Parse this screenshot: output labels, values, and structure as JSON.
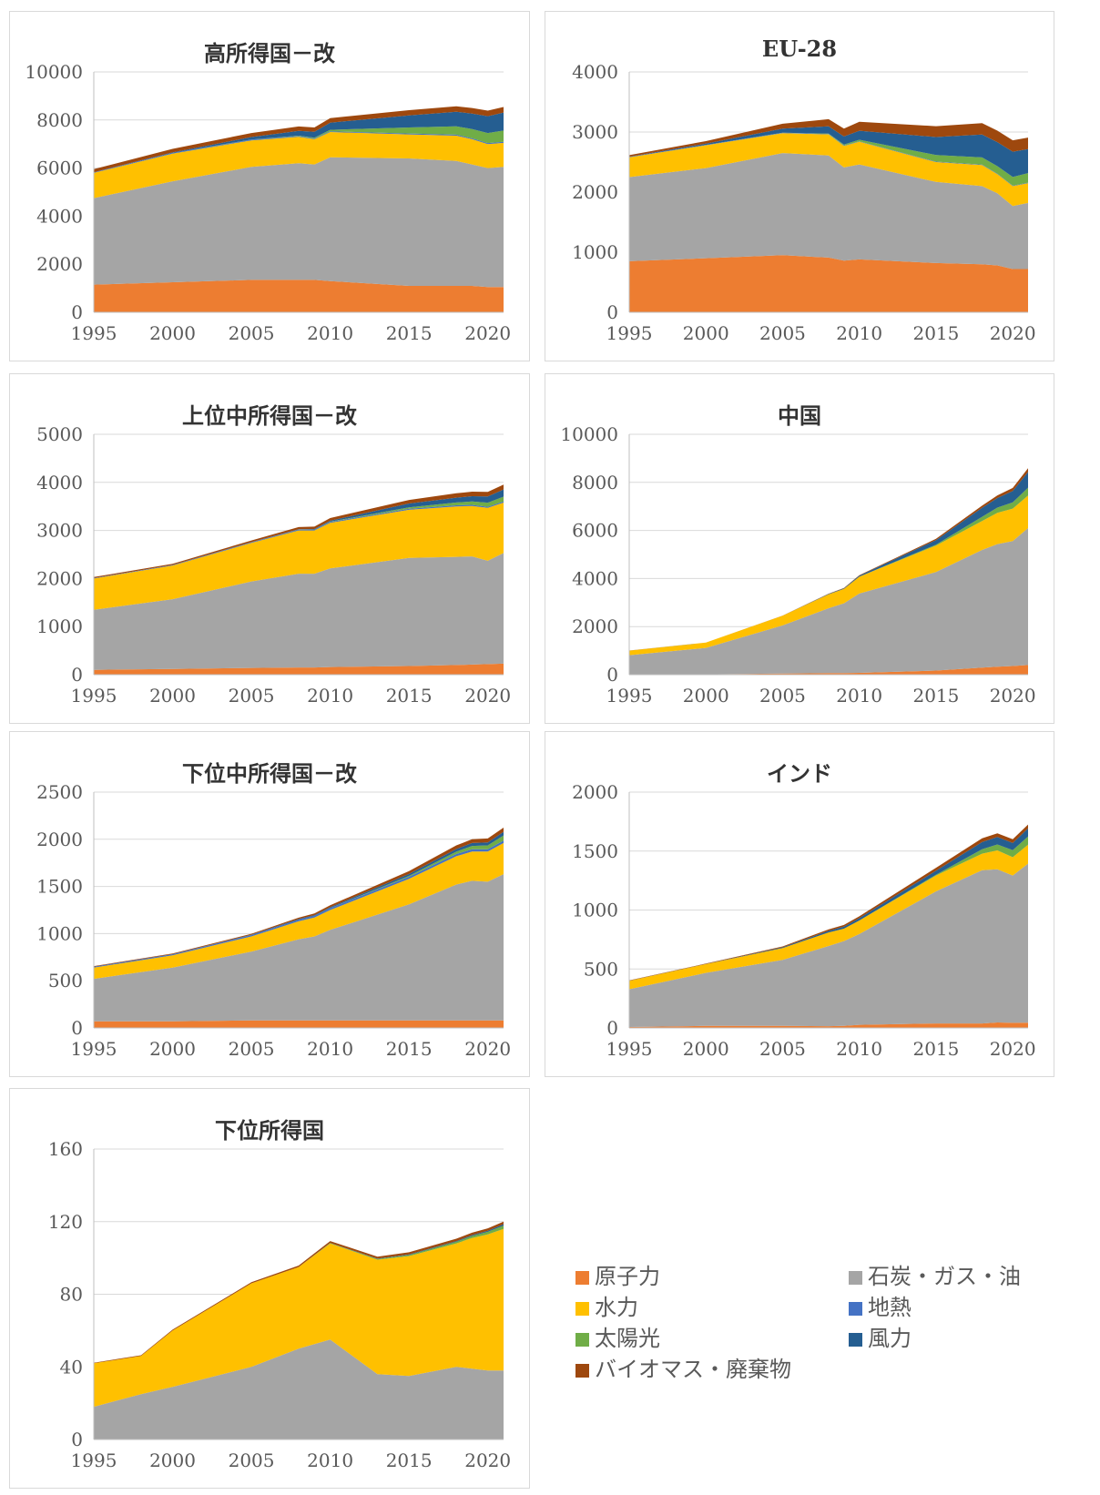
{
  "legend": {
    "nuclear": "原子力",
    "fossil": "石炭・ガス・油",
    "hydro": "水力",
    "geothermal": "地熱",
    "solar": "太陽光",
    "wind": "風力",
    "bio": "バイオマス・廃棄物"
  },
  "colors": {
    "nuclear": "#ED7D31",
    "fossil": "#A5A5A5",
    "hydro": "#FFC000",
    "geothermal": "#4472C4",
    "solar": "#70AD47",
    "wind": "#255E91",
    "bio": "#9E480E"
  },
  "chart_data": [
    {
      "type": "area",
      "title": "高所得国－改",
      "x": [
        1995,
        2000,
        2005,
        2008,
        2009,
        2010,
        2015,
        2018,
        2019,
        2020,
        2021
      ],
      "ylim": [
        0,
        10000
      ],
      "yticks": [
        0,
        2000,
        4000,
        6000,
        8000,
        10000
      ],
      "xticks": [
        1995,
        2000,
        2005,
        2010,
        2015,
        2020
      ],
      "series": [
        {
          "name": "原子力",
          "key": "nuclear",
          "values": [
            1150,
            1250,
            1350,
            1350,
            1350,
            1300,
            1100,
            1100,
            1100,
            1050,
            1050
          ]
        },
        {
          "name": "石炭・ガス・油",
          "key": "fossil",
          "values": [
            3600,
            4200,
            4700,
            4850,
            4800,
            5150,
            5300,
            5200,
            5050,
            4950,
            5000
          ]
        },
        {
          "name": "水力",
          "key": "hydro",
          "values": [
            1050,
            1150,
            1100,
            1100,
            1050,
            1050,
            1000,
            1050,
            1050,
            1000,
            1000
          ]
        },
        {
          "name": "地熱",
          "key": "geothermal",
          "values": [
            20,
            30,
            30,
            30,
            30,
            30,
            40,
            40,
            40,
            40,
            40
          ]
        },
        {
          "name": "太陽光",
          "key": "solar",
          "values": [
            0,
            0,
            10,
            20,
            30,
            60,
            250,
            350,
            380,
            420,
            470
          ]
        },
        {
          "name": "風力",
          "key": "wind",
          "values": [
            5,
            20,
            100,
            200,
            250,
            300,
            500,
            600,
            650,
            700,
            750
          ]
        },
        {
          "name": "バイオマス・廃棄物",
          "key": "bio",
          "values": [
            130,
            150,
            170,
            180,
            180,
            190,
            220,
            230,
            230,
            230,
            230
          ]
        }
      ]
    },
    {
      "type": "area",
      "title": "EU-28",
      "x": [
        1995,
        2000,
        2005,
        2008,
        2009,
        2010,
        2015,
        2018,
        2019,
        2020,
        2021
      ],
      "ylim": [
        0,
        4000
      ],
      "yticks": [
        0,
        1000,
        2000,
        3000,
        4000
      ],
      "xticks": [
        1995,
        2000,
        2005,
        2010,
        2015,
        2020
      ],
      "series": [
        {
          "name": "原子力",
          "key": "nuclear",
          "values": [
            850,
            900,
            950,
            910,
            860,
            880,
            820,
            800,
            780,
            720,
            720
          ]
        },
        {
          "name": "石炭・ガス・油",
          "key": "fossil",
          "values": [
            1400,
            1500,
            1700,
            1700,
            1550,
            1580,
            1350,
            1300,
            1200,
            1050,
            1100
          ]
        },
        {
          "name": "水力",
          "key": "hydro",
          "values": [
            330,
            380,
            330,
            350,
            360,
            380,
            330,
            350,
            320,
            330,
            330
          ]
        },
        {
          "name": "地熱",
          "key": "geothermal",
          "values": [
            5,
            6,
            6,
            6,
            6,
            6,
            7,
            7,
            7,
            7,
            7
          ]
        },
        {
          "name": "太陽光",
          "key": "solar",
          "values": [
            0,
            0,
            2,
            8,
            15,
            25,
            110,
            120,
            125,
            145,
            160
          ]
        },
        {
          "name": "風力",
          "key": "wind",
          "values": [
            5,
            22,
            70,
            120,
            135,
            150,
            300,
            380,
            400,
            420,
            400
          ]
        },
        {
          "name": "バイオマス・廃棄物",
          "key": "bio",
          "values": [
            25,
            40,
            80,
            120,
            130,
            150,
            180,
            190,
            190,
            190,
            190
          ]
        }
      ]
    },
    {
      "type": "area",
      "title": "上位中所得国－改",
      "x": [
        1995,
        2000,
        2005,
        2008,
        2009,
        2010,
        2015,
        2018,
        2019,
        2020,
        2021
      ],
      "ylim": [
        0,
        5000
      ],
      "yticks": [
        0,
        1000,
        2000,
        3000,
        4000,
        5000
      ],
      "xticks": [
        1995,
        2000,
        2005,
        2010,
        2015,
        2020
      ],
      "series": [
        {
          "name": "原子力",
          "key": "nuclear",
          "values": [
            100,
            120,
            140,
            150,
            150,
            160,
            180,
            200,
            210,
            220,
            230
          ]
        },
        {
          "name": "石炭・ガス・油",
          "key": "fossil",
          "values": [
            1250,
            1450,
            1800,
            1950,
            1950,
            2050,
            2250,
            2250,
            2250,
            2150,
            2300
          ]
        },
        {
          "name": "水力",
          "key": "hydro",
          "values": [
            650,
            700,
            800,
            900,
            900,
            950,
            1000,
            1050,
            1050,
            1100,
            1050
          ]
        },
        {
          "name": "地熱",
          "key": "geothermal",
          "values": [
            10,
            12,
            14,
            16,
            16,
            18,
            20,
            22,
            22,
            22,
            22
          ]
        },
        {
          "name": "太陽光",
          "key": "solar",
          "values": [
            0,
            0,
            0,
            2,
            3,
            5,
            30,
            60,
            70,
            85,
            100
          ]
        },
        {
          "name": "風力",
          "key": "wind",
          "values": [
            0,
            0,
            3,
            8,
            12,
            20,
            80,
            100,
            110,
            130,
            150
          ]
        },
        {
          "name": "バイオマス・廃棄物",
          "key": "bio",
          "values": [
            20,
            25,
            35,
            45,
            48,
            55,
            75,
            90,
            95,
            95,
            100
          ]
        }
      ]
    },
    {
      "type": "area",
      "title": "中国",
      "x": [
        1995,
        2000,
        2005,
        2008,
        2009,
        2010,
        2015,
        2018,
        2019,
        2020,
        2021
      ],
      "ylim": [
        0,
        10000
      ],
      "yticks": [
        0,
        2000,
        4000,
        6000,
        8000,
        10000
      ],
      "xticks": [
        1995,
        2000,
        2005,
        2010,
        2015,
        2020
      ],
      "series": [
        {
          "name": "原子力",
          "key": "nuclear",
          "values": [
            10,
            15,
            50,
            65,
            70,
            75,
            170,
            290,
            330,
            360,
            400
          ]
        },
        {
          "name": "石炭・ガス・油",
          "key": "fossil",
          "values": [
            800,
            1100,
            2000,
            2700,
            2900,
            3300,
            4100,
            4900,
            5100,
            5200,
            5700
          ]
        },
        {
          "name": "水力",
          "key": "hydro",
          "values": [
            190,
            220,
            400,
            580,
            600,
            700,
            1100,
            1200,
            1300,
            1350,
            1350
          ]
        },
        {
          "name": "地熱",
          "key": "geothermal",
          "values": [
            0,
            0,
            0,
            0,
            0,
            0,
            0,
            0,
            0,
            0,
            0
          ]
        },
        {
          "name": "太陽光",
          "key": "solar",
          "values": [
            0,
            0,
            0,
            0,
            0,
            1,
            40,
            180,
            220,
            260,
            330
          ]
        },
        {
          "name": "風力",
          "key": "wind",
          "values": [
            0,
            1,
            2,
            15,
            25,
            45,
            190,
            370,
            400,
            470,
            650
          ]
        },
        {
          "name": "バイオマス・廃棄物",
          "key": "bio",
          "values": [
            2,
            3,
            5,
            10,
            15,
            20,
            50,
            90,
            110,
            130,
            160
          ]
        }
      ]
    },
    {
      "type": "area",
      "title": "下位中所得国－改",
      "x": [
        1995,
        2000,
        2005,
        2008,
        2009,
        2010,
        2015,
        2018,
        2019,
        2020,
        2021
      ],
      "ylim": [
        0,
        2500
      ],
      "yticks": [
        0,
        500,
        1000,
        1500,
        2000,
        2500
      ],
      "xticks": [
        1995,
        2000,
        2005,
        2010,
        2015,
        2020
      ],
      "series": [
        {
          "name": "原子力",
          "key": "nuclear",
          "values": [
            70,
            70,
            80,
            80,
            80,
            80,
            80,
            80,
            80,
            80,
            80
          ]
        },
        {
          "name": "石炭・ガス・油",
          "key": "fossil",
          "values": [
            450,
            570,
            730,
            860,
            890,
            960,
            1230,
            1440,
            1480,
            1470,
            1550
          ]
        },
        {
          "name": "水力",
          "key": "hydro",
          "values": [
            120,
            130,
            160,
            190,
            200,
            210,
            270,
            300,
            310,
            320,
            330
          ]
        },
        {
          "name": "地熱",
          "key": "geothermal",
          "values": [
            10,
            12,
            15,
            17,
            18,
            19,
            22,
            24,
            25,
            25,
            26
          ]
        },
        {
          "name": "太陽光",
          "key": "solar",
          "values": [
            0,
            0,
            0,
            0,
            0,
            1,
            10,
            25,
            35,
            40,
            55
          ]
        },
        {
          "name": "風力",
          "key": "wind",
          "values": [
            0,
            0,
            3,
            7,
            8,
            10,
            20,
            28,
            30,
            32,
            38
          ]
        },
        {
          "name": "バイオマス・廃棄物",
          "key": "bio",
          "values": [
            5,
            7,
            10,
            15,
            17,
            20,
            30,
            38,
            40,
            42,
            45
          ]
        }
      ]
    },
    {
      "type": "area",
      "title": "インド",
      "x": [
        1995,
        2000,
        2005,
        2008,
        2009,
        2010,
        2015,
        2018,
        2019,
        2020,
        2021
      ],
      "ylim": [
        0,
        2000
      ],
      "yticks": [
        0,
        500,
        1000,
        1500,
        2000
      ],
      "xticks": [
        1995,
        2000,
        2005,
        2010,
        2015,
        2020
      ],
      "series": [
        {
          "name": "原子力",
          "key": "nuclear",
          "values": [
            8,
            17,
            17,
            15,
            17,
            26,
            38,
            38,
            46,
            43,
            44
          ]
        },
        {
          "name": "石炭・ガス・油",
          "key": "fossil",
          "values": [
            320,
            450,
            560,
            680,
            720,
            770,
            1120,
            1300,
            1300,
            1250,
            1350
          ]
        },
        {
          "name": "水力",
          "key": "hydro",
          "values": [
            72,
            74,
            100,
            115,
            105,
            115,
            135,
            140,
            160,
            155,
            160
          ]
        },
        {
          "name": "地熱",
          "key": "geothermal",
          "values": [
            0,
            0,
            0,
            0,
            0,
            0,
            0,
            0,
            0,
            0,
            0
          ]
        },
        {
          "name": "太陽光",
          "key": "solar",
          "values": [
            0,
            0,
            0,
            0,
            0,
            0,
            7,
            38,
            50,
            60,
            70
          ]
        },
        {
          "name": "風力",
          "key": "wind",
          "values": [
            1,
            2,
            7,
            14,
            17,
            20,
            33,
            60,
            63,
            60,
            68
          ]
        },
        {
          "name": "バイオマス・廃棄物",
          "key": "bio",
          "values": [
            2,
            3,
            7,
            12,
            14,
            16,
            25,
            32,
            32,
            32,
            33
          ]
        }
      ]
    },
    {
      "type": "area",
      "title": "下位所得国",
      "x": [
        1995,
        1998,
        2000,
        2005,
        2008,
        2010,
        2013,
        2015,
        2018,
        2019,
        2020,
        2021
      ],
      "ylim": [
        0,
        160
      ],
      "yticks": [
        0,
        40,
        80,
        120,
        160
      ],
      "xticks": [
        1995,
        2000,
        2005,
        2010,
        2015,
        2020
      ],
      "series": [
        {
          "name": "原子力",
          "key": "nuclear",
          "values": [
            0,
            0,
            0,
            0,
            0,
            0,
            0,
            0,
            0,
            0,
            0,
            0
          ]
        },
        {
          "name": "石炭・ガス・油",
          "key": "fossil",
          "values": [
            18,
            25,
            29,
            40,
            50,
            55,
            36,
            35,
            40,
            39,
            38,
            38
          ]
        },
        {
          "name": "水力",
          "key": "hydro",
          "values": [
            24,
            21,
            31,
            46,
            45,
            53,
            63,
            66,
            68,
            72,
            75,
            78
          ]
        },
        {
          "name": "地熱",
          "key": "geothermal",
          "values": [
            0,
            0,
            0,
            0,
            0,
            0,
            0,
            0,
            0,
            0,
            0,
            0
          ]
        },
        {
          "name": "太陽光",
          "key": "solar",
          "values": [
            0,
            0,
            0,
            0,
            0,
            0.2,
            0.4,
            0.6,
            0.9,
            1.1,
            1.4,
            1.8
          ]
        },
        {
          "name": "風力",
          "key": "wind",
          "values": [
            0,
            0,
            0,
            0,
            0,
            0.1,
            0.2,
            0.3,
            0.4,
            0.5,
            0.6,
            0.8
          ]
        },
        {
          "name": "バイオマス・廃棄物",
          "key": "bio",
          "values": [
            0.3,
            0.4,
            0.5,
            0.6,
            0.8,
            1,
            1.1,
            1.2,
            1.3,
            1.3,
            1.3,
            1.4
          ]
        }
      ]
    }
  ]
}
